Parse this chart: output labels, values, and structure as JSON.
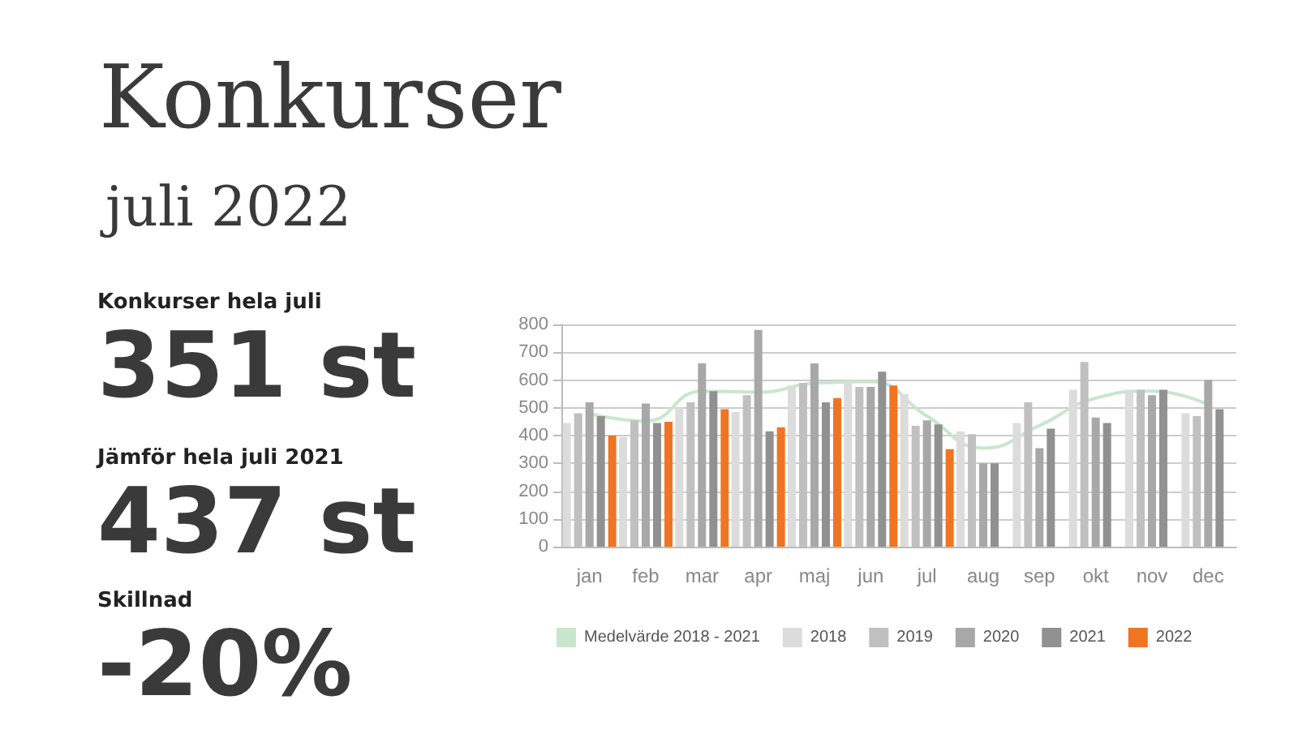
{
  "chart_data": {
    "type": "bar",
    "title": "Konkurser",
    "subtitle": "juli 2022",
    "annotations": [
      "Konkurser hela juli",
      "351 st",
      "Jämför hela juli 2021",
      "437 st",
      "Skillnad",
      "-20%"
    ],
    "categories": [
      "jan",
      "feb",
      "mar",
      "apr",
      "maj",
      "jun",
      "jul",
      "aug",
      "sep",
      "okt",
      "nov",
      "dec"
    ],
    "series": [
      {
        "name": "Medelvärde 2018 - 2021",
        "type": "line",
        "color": "#c9e6cc",
        "values": [
          479,
          452,
          560,
          556,
          588,
          594,
          470,
          355,
          436,
          535,
          560,
          511
        ]
      },
      {
        "name": "2018",
        "color": "#dcdcdc",
        "values": [
          445,
          395,
          500,
          485,
          580,
          595,
          550,
          415,
          445,
          565,
          565,
          480
        ]
      },
      {
        "name": "2019",
        "color": "#c0c0c0",
        "values": [
          480,
          455,
          520,
          545,
          590,
          575,
          435,
          405,
          520,
          665,
          565,
          470
        ]
      },
      {
        "name": "2020",
        "color": "#a8a8a8",
        "values": [
          520,
          515,
          660,
          780,
          660,
          575,
          455,
          300,
          355,
          465,
          545,
          600
        ]
      },
      {
        "name": "2021",
        "color": "#919191",
        "values": [
          470,
          445,
          560,
          415,
          520,
          630,
          440,
          300,
          425,
          445,
          565,
          495
        ]
      },
      {
        "name": "2022",
        "color": "#f07522",
        "values": [
          400,
          450,
          495,
          430,
          535,
          580,
          351,
          null,
          null,
          null,
          null,
          null
        ]
      }
    ],
    "ylim": [
      0,
      800
    ],
    "yticks": [
      0,
      100,
      200,
      300,
      400,
      500,
      600,
      700,
      800
    ],
    "grid": "y",
    "legend": "bottom",
    "marker": "none"
  }
}
